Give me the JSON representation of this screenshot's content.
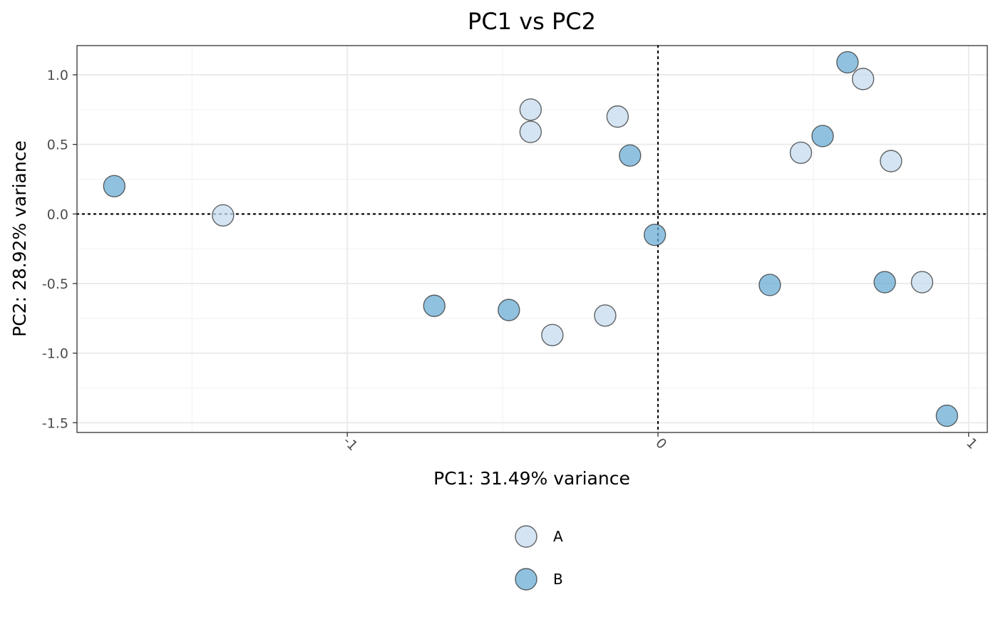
{
  "chart_data": {
    "type": "scatter",
    "title": "PC1 vs PC2",
    "xlabel": "PC1: 31.49% variance",
    "ylabel": "PC2: 28.92% variance",
    "xlim": [
      -1.87,
      1.06
    ],
    "ylim": [
      -1.57,
      1.21
    ],
    "x_major_ticks": [
      -1,
      0,
      1
    ],
    "x_tick_labels": [
      "-1",
      "0",
      "1"
    ],
    "x_minor_ticks": [
      -1.5,
      -0.5,
      0.5
    ],
    "y_major_ticks": [
      1.0,
      0.5,
      0.0,
      -0.5,
      -1.0,
      -1.5
    ],
    "y_tick_labels": [
      "1.0",
      "0.5",
      "0.0",
      "-0.5",
      "-1.0",
      "-1.5"
    ],
    "y_minor_ticks": [
      0.75,
      0.25,
      -0.25,
      -0.75,
      -1.25
    ],
    "reference_lines": {
      "x": 0,
      "y": 0,
      "style": "dotted"
    },
    "grid": true,
    "legend_position": "bottom",
    "series": [
      {
        "name": "A",
        "color": "#c6dbef",
        "points": [
          {
            "x": -1.4,
            "y": -0.01
          },
          {
            "x": -0.41,
            "y": 0.75
          },
          {
            "x": -0.41,
            "y": 0.59
          },
          {
            "x": -0.13,
            "y": 0.7
          },
          {
            "x": -0.34,
            "y": -0.87
          },
          {
            "x": -0.17,
            "y": -0.73
          },
          {
            "x": 0.46,
            "y": 0.44
          },
          {
            "x": 0.66,
            "y": 0.97
          },
          {
            "x": 0.75,
            "y": 0.38
          },
          {
            "x": 0.85,
            "y": -0.49
          }
        ]
      },
      {
        "name": "B",
        "color": "#6baed6",
        "points": [
          {
            "x": -1.75,
            "y": 0.2
          },
          {
            "x": -0.72,
            "y": -0.66
          },
          {
            "x": -0.48,
            "y": -0.69
          },
          {
            "x": -0.09,
            "y": 0.42
          },
          {
            "x": -0.01,
            "y": -0.15
          },
          {
            "x": 0.36,
            "y": -0.51
          },
          {
            "x": 0.53,
            "y": 0.56
          },
          {
            "x": 0.61,
            "y": 1.09
          },
          {
            "x": 0.73,
            "y": -0.49
          },
          {
            "x": 0.93,
            "y": -1.45
          }
        ]
      }
    ]
  }
}
